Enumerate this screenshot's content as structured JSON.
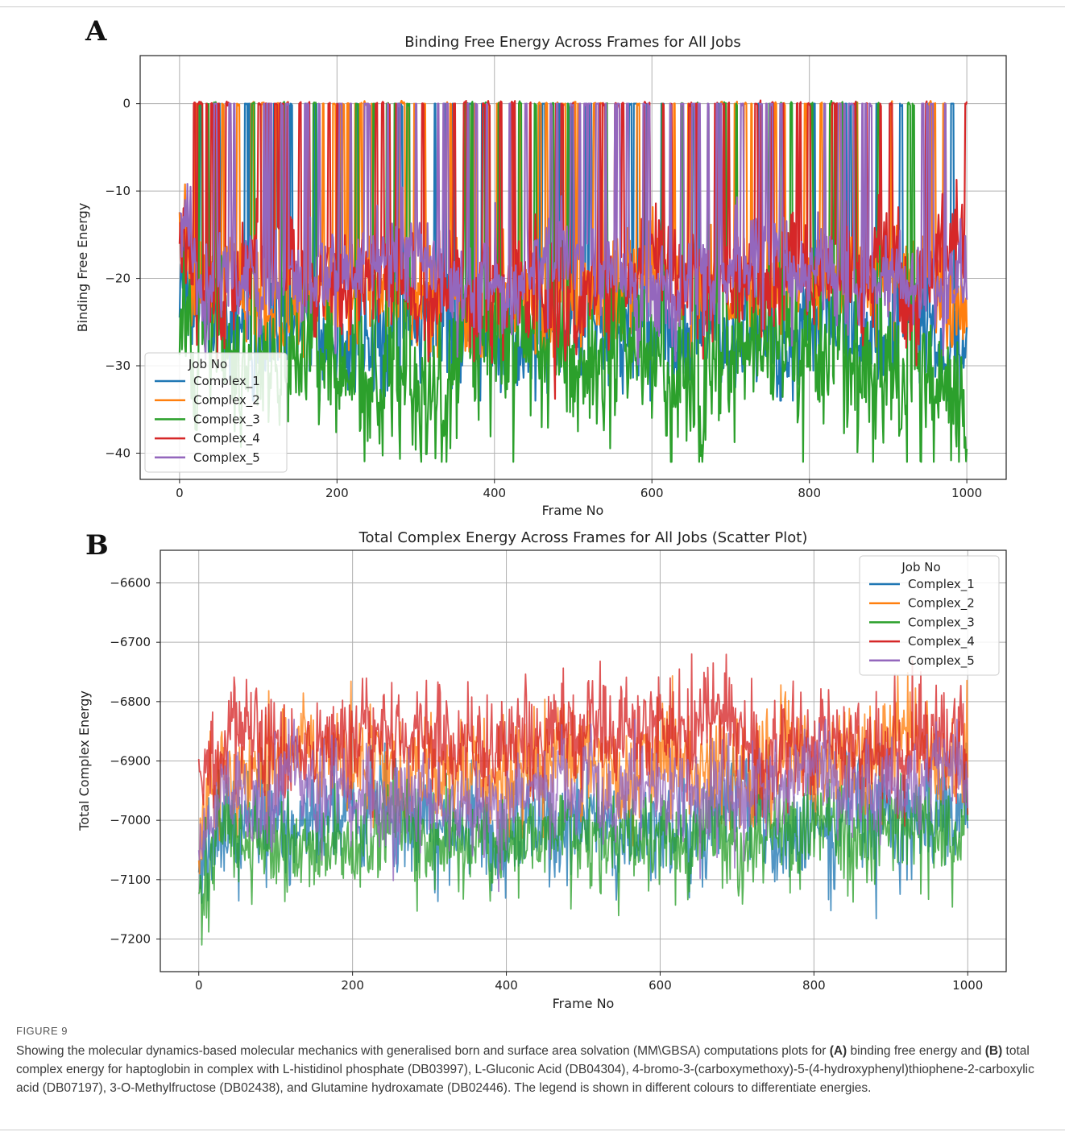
{
  "figure": {
    "caption_label": "FIGURE 9",
    "caption_parts": {
      "intro": "Showing the molecular dynamics-based molecular mechanics with generalised born and surface area solvation (MM\\GBSA) computations plots for ",
      "ref_a": "(A)",
      "mid": " binding free energy and ",
      "ref_b": "(B)",
      "rest": " total complex energy for haptoglobin in complex with L-histidinol phosphate (DB03997), L-Gluconic Acid (DB04304), 4-bromo-3-(carboxymethoxy)-5-(4-hydroxyphenyl)thiophene-2-carboxylic acid (DB07197), 3-O-Methylfructose (DB02438), and Glutamine hydroxamate (DB02446). The legend is shown in different colours to differentiate energies."
    }
  },
  "series_colors": {
    "Complex_1": "#1f77b4",
    "Complex_2": "#ff7f0e",
    "Complex_3": "#2ca02c",
    "Complex_4": "#d62728",
    "Complex_5": "#9467bd"
  },
  "chart_data": [
    {
      "panel_letter": "A",
      "type": "line",
      "title": "Binding Free Energy Across Frames for All Jobs",
      "xlabel": "Frame No",
      "ylabel": "Binding Free Energy",
      "xlim": [
        -50,
        1050
      ],
      "ylim": [
        -43,
        5.5
      ],
      "xticks": [
        0,
        200,
        400,
        600,
        800,
        1000
      ],
      "yticks": [
        0,
        -10,
        -20,
        -30,
        -40
      ],
      "grid": true,
      "legend": {
        "title": "Job No",
        "placement": "lower-left",
        "entries": [
          "Complex_1",
          "Complex_2",
          "Complex_3",
          "Complex_4",
          "Complex_5"
        ]
      },
      "frames": [
        0,
        1000
      ],
      "series": [
        {
          "name": "Complex_1",
          "baseline": -26,
          "noise": 3,
          "spike_to": 0,
          "spike_rate": 0.06,
          "min": -34,
          "max": 0
        },
        {
          "name": "Complex_2",
          "baseline": -21,
          "noise": 3,
          "spike_to": 0,
          "spike_rate": 0.07,
          "min": -29,
          "max": 3.2
        },
        {
          "name": "Complex_3",
          "baseline": -30,
          "noise": 4,
          "spike_to": 0,
          "spike_rate": 0.05,
          "min": -41,
          "max": 1.2
        },
        {
          "name": "Complex_4",
          "baseline": -21,
          "noise": 3,
          "spike_to": 0,
          "spike_rate": 0.08,
          "min": -34,
          "max": 1.4
        },
        {
          "name": "Complex_5",
          "baseline": -20,
          "noise": 2.5,
          "spike_to": 0,
          "spike_rate": 0.08,
          "min": -31,
          "max": 0
        }
      ]
    },
    {
      "panel_letter": "B",
      "type": "line",
      "title": "Total Complex Energy Across Frames for All Jobs (Scatter Plot)",
      "xlabel": "Frame No",
      "ylabel": "Total Complex Energy",
      "xlim": [
        -50,
        1050
      ],
      "ylim": [
        -7255,
        -6545
      ],
      "xticks": [
        0,
        200,
        400,
        600,
        800,
        1000
      ],
      "yticks": [
        -6600,
        -6700,
        -6800,
        -6900,
        -7000,
        -7100,
        -7200
      ],
      "grid": true,
      "legend": {
        "title": "Job No",
        "placement": "upper-right",
        "entries": [
          "Complex_1",
          "Complex_2",
          "Complex_3",
          "Complex_4",
          "Complex_5"
        ]
      },
      "frames": [
        0,
        1000
      ],
      "series": [
        {
          "name": "Complex_1",
          "mean": -7010,
          "noise": 45,
          "min": -7225,
          "max": -6870
        },
        {
          "name": "Complex_2",
          "mean": -6900,
          "noise": 45,
          "min": -7090,
          "max": -6660
        },
        {
          "name": "Complex_3",
          "mean": -7030,
          "noise": 40,
          "min": -7210,
          "max": -6900
        },
        {
          "name": "Complex_4",
          "mean": -6860,
          "noise": 45,
          "min": -7060,
          "max": -6560
        },
        {
          "name": "Complex_5",
          "mean": -6950,
          "noise": 40,
          "min": -7120,
          "max": -6830
        }
      ]
    }
  ]
}
